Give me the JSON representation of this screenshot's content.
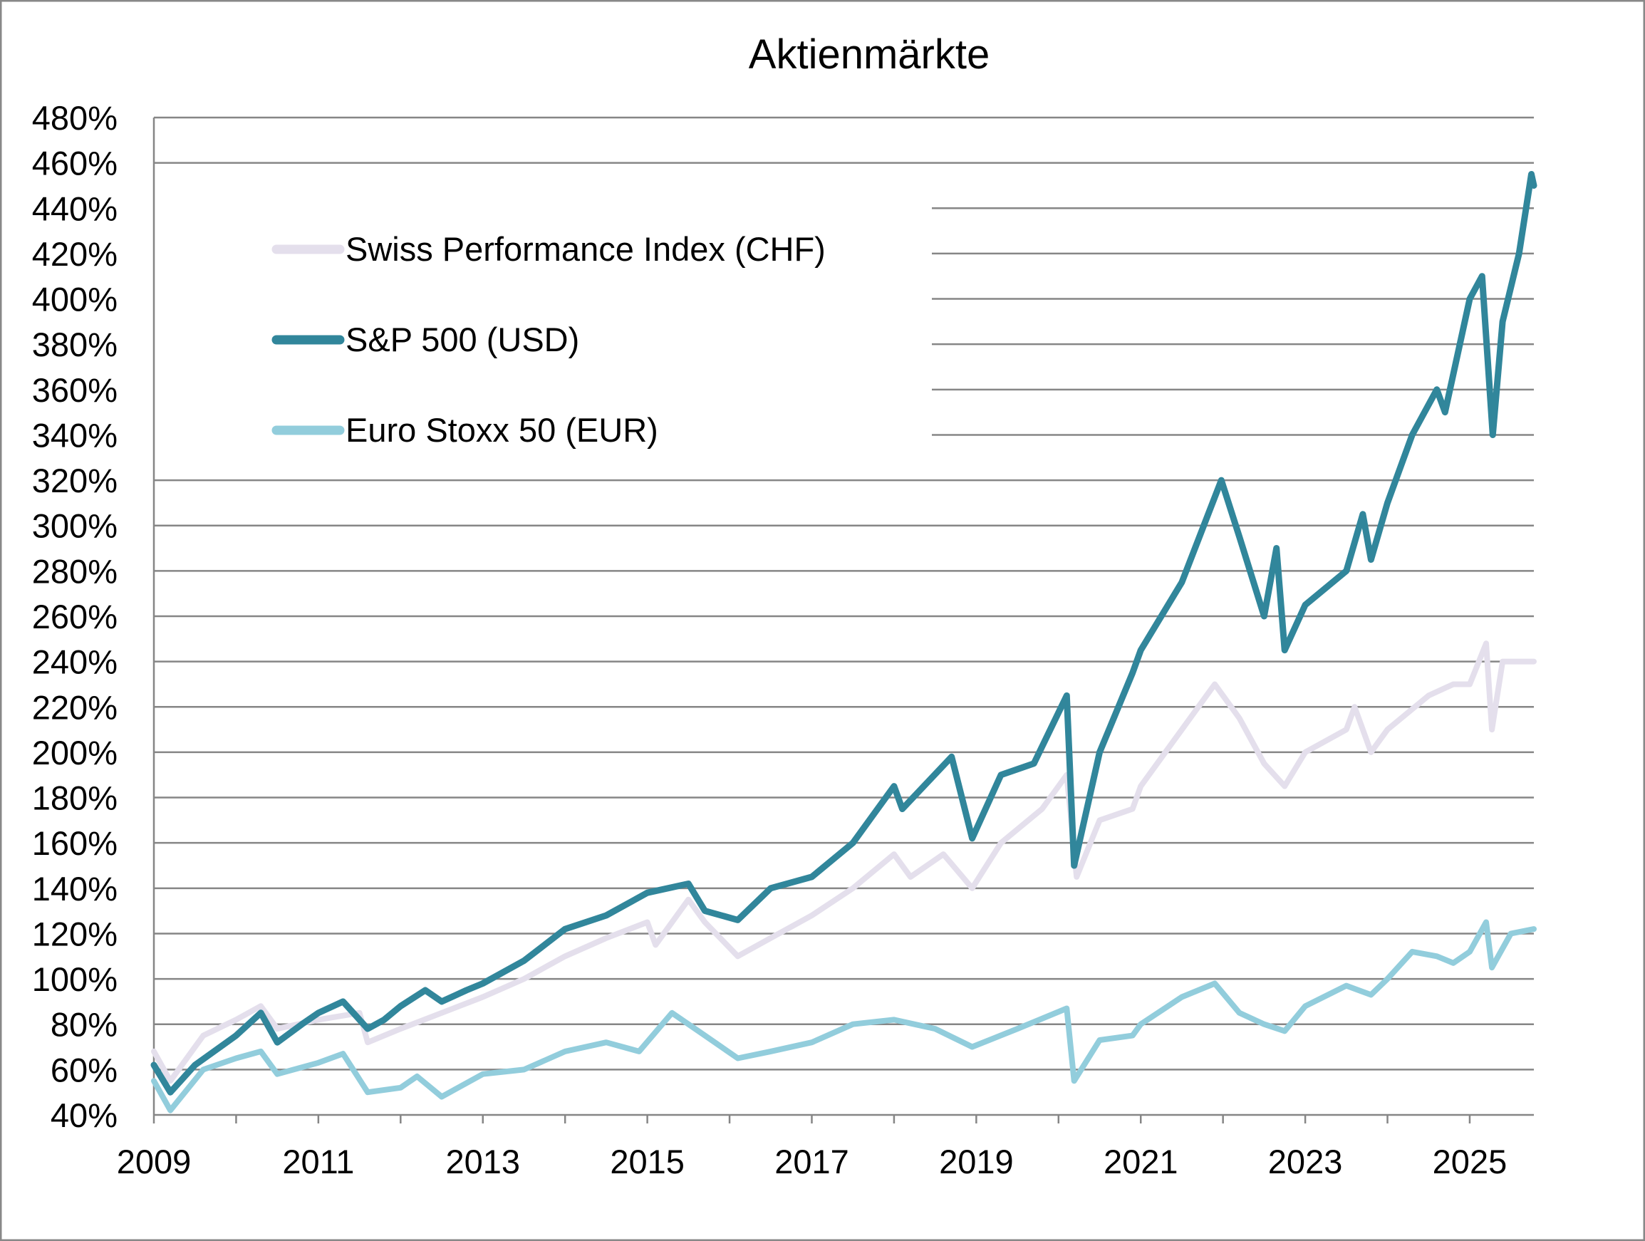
{
  "chart_data": {
    "type": "line",
    "title": "Aktienmärkte",
    "xlabel": "",
    "ylabel": "",
    "xlim": [
      2009.0,
      2025.78
    ],
    "ylim": [
      40,
      480
    ],
    "y_ticks": [
      40,
      60,
      80,
      100,
      120,
      140,
      160,
      180,
      200,
      220,
      240,
      260,
      280,
      300,
      320,
      340,
      360,
      380,
      400,
      420,
      440,
      460,
      480
    ],
    "y_tick_labels": [
      "40%",
      "60%",
      "80%",
      "100%",
      "120%",
      "140%",
      "160%",
      "180%",
      "200%",
      "220%",
      "240%",
      "260%",
      "280%",
      "300%",
      "320%",
      "340%",
      "360%",
      "380%",
      "400%",
      "420%",
      "440%",
      "460%",
      "480%"
    ],
    "x_ticks": [
      2009,
      2010,
      2011,
      2012,
      2013,
      2014,
      2015,
      2016,
      2017,
      2018,
      2019,
      2020,
      2021,
      2022,
      2023,
      2024,
      2025
    ],
    "x_tick_labels": [
      "2009",
      "2011",
      "2013",
      "2015",
      "2017",
      "2019",
      "2021",
      "2023",
      "2025"
    ],
    "grid": "horizontal",
    "legend_placement": "top-left",
    "series": [
      {
        "name": "Swiss Performance Index (CHF)",
        "color": "#e4dfec",
        "x": [
          2009.0,
          2009.2,
          2009.6,
          2010.0,
          2010.3,
          2010.5,
          2011.0,
          2011.5,
          2011.6,
          2012.0,
          2012.5,
          2013.0,
          2013.5,
          2014.0,
          2014.5,
          2015.0,
          2015.1,
          2015.5,
          2015.7,
          2016.1,
          2016.5,
          2017.0,
          2017.5,
          2018.0,
          2018.2,
          2018.6,
          2018.95,
          2019.3,
          2019.8,
          2020.1,
          2020.22,
          2020.5,
          2020.9,
          2021.0,
          2021.5,
          2021.9,
          2022.2,
          2022.5,
          2022.75,
          2023.0,
          2023.5,
          2023.6,
          2023.8,
          2024.0,
          2024.5,
          2024.8,
          2025.0,
          2025.2,
          2025.27,
          2025.4,
          2025.78
        ],
        "values": [
          68,
          55,
          75,
          82,
          88,
          78,
          82,
          85,
          72,
          78,
          85,
          92,
          100,
          110,
          118,
          125,
          115,
          135,
          125,
          110,
          118,
          128,
          140,
          155,
          145,
          155,
          140,
          160,
          175,
          190,
          145,
          170,
          175,
          185,
          210,
          230,
          215,
          195,
          185,
          200,
          210,
          220,
          200,
          210,
          225,
          230,
          230,
          248,
          210,
          240,
          240
        ]
      },
      {
        "name": "S&P 500 (USD)",
        "color": "#31869b",
        "x": [
          2009.0,
          2009.2,
          2009.5,
          2010.0,
          2010.3,
          2010.5,
          2010.8,
          2011.0,
          2011.3,
          2011.6,
          2011.8,
          2012.0,
          2012.3,
          2012.5,
          2012.8,
          2013.0,
          2013.5,
          2014.0,
          2014.5,
          2015.0,
          2015.5,
          2015.7,
          2016.1,
          2016.5,
          2017.0,
          2017.5,
          2018.0,
          2018.1,
          2018.7,
          2018.95,
          2019.3,
          2019.7,
          2020.1,
          2020.19,
          2020.5,
          2020.9,
          2021.0,
          2021.5,
          2021.98,
          2022.2,
          2022.5,
          2022.65,
          2022.75,
          2023.0,
          2023.5,
          2023.7,
          2023.8,
          2024.0,
          2024.3,
          2024.6,
          2024.7,
          2025.0,
          2025.15,
          2025.28,
          2025.4,
          2025.6,
          2025.75,
          2025.78
        ],
        "values": [
          62,
          50,
          62,
          75,
          85,
          72,
          80,
          85,
          90,
          78,
          82,
          88,
          95,
          90,
          95,
          98,
          108,
          122,
          128,
          138,
          142,
          130,
          126,
          140,
          145,
          160,
          185,
          175,
          198,
          162,
          190,
          195,
          225,
          150,
          200,
          235,
          245,
          275,
          320,
          295,
          260,
          290,
          245,
          265,
          280,
          305,
          285,
          310,
          340,
          360,
          350,
          400,
          410,
          340,
          390,
          420,
          455,
          450
        ]
      },
      {
        "name": "Euro Stoxx 50 (EUR)",
        "color": "#92cddc",
        "x": [
          2009.0,
          2009.2,
          2009.6,
          2010.0,
          2010.3,
          2010.5,
          2011.0,
          2011.3,
          2011.6,
          2012.0,
          2012.2,
          2012.5,
          2013.0,
          2013.5,
          2014.0,
          2014.5,
          2014.9,
          2015.3,
          2015.7,
          2016.1,
          2016.5,
          2017.0,
          2017.5,
          2018.0,
          2018.5,
          2018.95,
          2019.5,
          2020.1,
          2020.19,
          2020.5,
          2020.9,
          2021.0,
          2021.5,
          2021.9,
          2022.2,
          2022.5,
          2022.75,
          2023.0,
          2023.5,
          2023.8,
          2024.0,
          2024.3,
          2024.6,
          2024.8,
          2025.0,
          2025.2,
          2025.27,
          2025.5,
          2025.78
        ],
        "values": [
          55,
          42,
          60,
          65,
          68,
          58,
          63,
          67,
          50,
          52,
          57,
          48,
          58,
          60,
          68,
          72,
          68,
          85,
          75,
          65,
          68,
          72,
          80,
          82,
          78,
          70,
          78,
          87,
          55,
          73,
          75,
          80,
          92,
          98,
          85,
          80,
          77,
          88,
          97,
          93,
          100,
          112,
          110,
          107,
          112,
          125,
          105,
          120,
          122
        ]
      }
    ]
  }
}
